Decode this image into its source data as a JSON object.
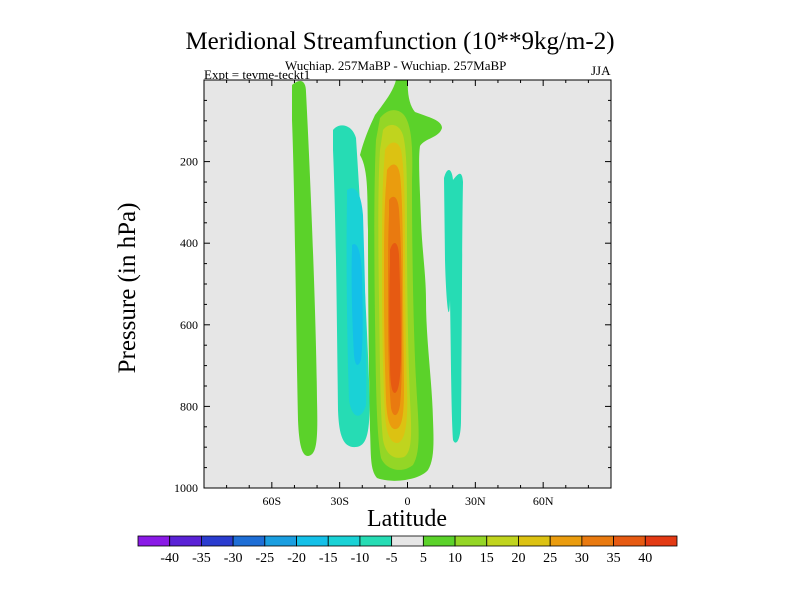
{
  "chart_data": {
    "type": "contour",
    "title": "Meridional Streamfunction (10**9kg/m-2)",
    "subtitle": "Wuchiap. 257MaBP - Wuchiap. 257MaBP",
    "experiment": "Expt = tevme-teckt1",
    "season": "JJA",
    "xlabel": "Latitude",
    "ylabel": "Pressure (in hPa)",
    "xlim": [
      -90,
      90
    ],
    "ylim": [
      1000,
      0
    ],
    "x_ticks": [
      {
        "value": -60,
        "label": "60S"
      },
      {
        "value": -30,
        "label": "30S"
      },
      {
        "value": 0,
        "label": "0"
      },
      {
        "value": 30,
        "label": "30N"
      },
      {
        "value": 60,
        "label": "60N"
      }
    ],
    "y_ticks": [
      {
        "value": 200,
        "label": "200"
      },
      {
        "value": 400,
        "label": "400"
      },
      {
        "value": 600,
        "label": "600"
      },
      {
        "value": 800,
        "label": "800"
      },
      {
        "value": 1000,
        "label": "1000"
      }
    ],
    "plot_background": "#e6e6e6",
    "colorbar": {
      "levels": [
        -40,
        -35,
        -30,
        -25,
        -20,
        -15,
        -10,
        -5,
        5,
        10,
        15,
        20,
        25,
        30,
        35,
        40
      ],
      "labels": [
        "-40",
        "-35",
        "-30",
        "-25",
        "-20",
        "-15",
        "-10",
        "-5",
        "5",
        "10",
        "15",
        "20",
        "25",
        "30",
        "35",
        "40"
      ],
      "colors": [
        "#8a1ae6",
        "#5a22d6",
        "#2a3ccf",
        "#1e6ed6",
        "#1a9ee0",
        "#14c0e8",
        "#1ad2d6",
        "#26dcb4",
        "#e6e6e6",
        "#5bd22a",
        "#94d626",
        "#c0d41e",
        "#dcc212",
        "#ea9c0e",
        "#e97a10",
        "#e65a12",
        "#e33a14"
      ]
    },
    "regions": [
      {
        "name": "positive cell, northern flank (5 to 10)",
        "lat": [
          -15,
          8
        ],
        "p": [
          0,
          960
        ],
        "level_range": [
          5,
          10
        ]
      },
      {
        "name": "positive cell core",
        "lat": [
          -12,
          4
        ],
        "p": [
          250,
          880
        ],
        "level_range": [
          30,
          35
        ]
      },
      {
        "name": "negative cell south of equator",
        "lat": [
          -25,
          -12
        ],
        "p": [
          200,
          900
        ],
        "level_range": [
          -15,
          -10
        ]
      },
      {
        "name": "weak positive band at 45S",
        "lat": [
          -50,
          -40
        ],
        "p": [
          0,
          900
        ],
        "level_range": [
          5,
          10
        ]
      },
      {
        "name": "weak negative band near 22N",
        "lat": [
          19,
          25
        ],
        "p": [
          200,
          880
        ],
        "level_range": [
          -10,
          -5
        ]
      }
    ]
  }
}
